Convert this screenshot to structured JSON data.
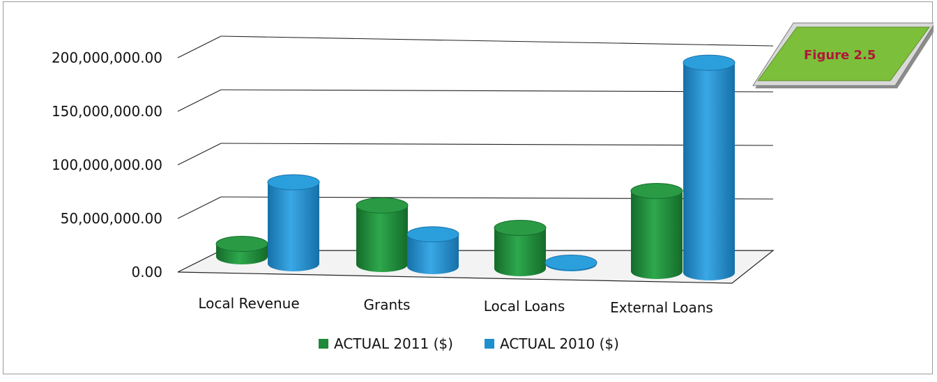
{
  "chart_data": {
    "type": "bar",
    "title": "",
    "xlabel": "",
    "ylabel": "",
    "ylim": [
      0,
      200000000
    ],
    "yticks": [
      "0.00",
      "50,000,000.00",
      "100,000,000.00",
      "150,000,000.00",
      "200,000,000.00"
    ],
    "categories": [
      "Local Revenue",
      "Grants",
      "Local Loans",
      "External Loans"
    ],
    "series": [
      {
        "name": "ACTUAL 2011 ($)",
        "color": "#1e8a3a",
        "values": [
          12000000,
          55000000,
          38000000,
          75000000
        ]
      },
      {
        "name": "ACTUAL 2010 ($)",
        "color": "#1f8fcf",
        "values": [
          76000000,
          30000000,
          1000000,
          196000000
        ]
      }
    ],
    "grid": true,
    "legend_position": "bottom",
    "style": "3d-cylinder"
  },
  "badge": {
    "label": "Figure 2.5",
    "color": "#7cbf3a"
  }
}
